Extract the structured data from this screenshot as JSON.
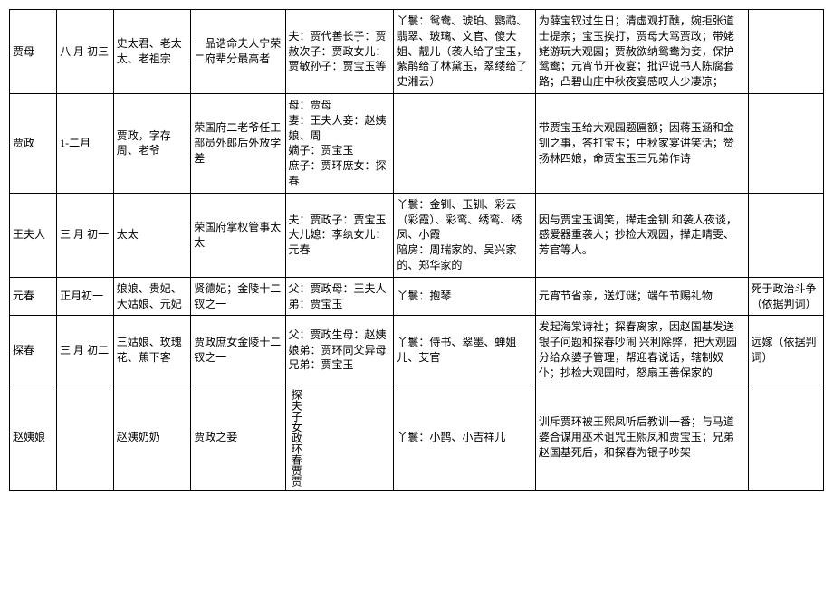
{
  "rows": [
    {
      "name": "贾母",
      "c2": "八 月 初三",
      "c3": "史太君、老太太、老祖宗",
      "c4": "一品诰命夫人宁荣二府辈分最高者",
      "c5": "夫：贾代善长子：贾赦次子：贾政女儿：贾敏孙子：贾宝玉等",
      "c6": "丫鬟：鸳鸯、琥珀、鹦鹉、翡翠、玻璃、文官、傻大姐、靓儿（袭人给了宝玉，紫鹃给了林黛玉，翠缕给了史湘云）",
      "c7": "为薛宝钗过生日；清虚观打醮，婉拒张道士提亲；宝玉挨打，贾母大骂贾政；带姥姥游玩大观园；贾赦欲纳鸳鸯为妾，保护鸳鸯；元宵节开夜宴；批评说书人陈腐套路；凸碧山庄中秋夜宴感叹人少凄凉；",
      "c8": ""
    },
    {
      "name": "贾政",
      "c2": "1-二月",
      "c3": "贾政，字存周、老爷",
      "c4": "荣国府二老爷任工部员外郎后外放学差",
      "c5": "母：贾母\n妻：王夫人妾：赵姨娘、周\n嫡子：贾宝玉\n庶子：贾环庶女：探春",
      "c6": "",
      "c7": "带贾宝玉给大观园题匾额；因蒋玉涵和金钏之事，答打宝玉；中秋家宴讲笑话；赞扬林四娘，命贾宝玉三兄弟作诗",
      "c8": ""
    },
    {
      "name": "王夫人",
      "c2": "三 月 初一",
      "c3": "太太",
      "c4": "荣国府掌权管事太太",
      "c5": "夫：贾政子：贾宝玉大儿媳：李纨女儿：元春",
      "c6": "丫鬟：金钏、玉钏、彩云（彩霞）、彩鸾、绣鸾、绣凤、小霞\n陪房：周瑞家的、吴兴家的、郑华家的",
      "c7": "因与贾宝玉调笑，撵走金钏 和袭人夜谈，感爱器重袭人；抄检大观园，撵走晴雯、芳官等人。",
      "c8": ""
    },
    {
      "name": "元春",
      "c2": "正月初一",
      "c3": "娘娘、贵妃、大姑娘、元妃",
      "c4": "贤德妃；金陵十二钗之一",
      "c5": "父：贾政母：王夫人弟：贾宝玉",
      "c6": "丫鬟：抱琴",
      "c7": "元宵节省亲，送灯谜；端午节赐礼物",
      "c8": "死于政治斗争（依据判词）"
    },
    {
      "name": "探春",
      "c2": "三 月 初二",
      "c3": "三姑娘、玫瑰花、蕉下客",
      "c4": "贾政庶女金陵十二钗之一",
      "c5": "父：贾政生母：赵姨娘弟：贾环同父异母兄弟：贾宝玉",
      "c6": "丫鬟：侍书、翠墨、蝉姐儿、艾官",
      "c7": "发起海棠诗社；探春离家，因赵国基发送银子问题和探春吵闹  兴利除弊，把大观园分给众婆子管理，帮迎春说话，辖制奴仆；抄检大观园时，怒扇王善保家的",
      "c8": "远嫁（依据判词）"
    },
    {
      "name": "赵姨娘",
      "c2": "",
      "c3": "赵姨奶奶",
      "c4": "贾政之妾",
      "c5_vert": "探夫子女政环春贾贾",
      "c6": "丫鬟：小鹊、小吉祥儿",
      "c7": "训斥贾环被王熙凤听后教训一番；与马道婆合谋用巫术诅咒王熙凤和贾宝玉；兄弟赵国基死后，和探春为银子吵架",
      "c8": ""
    }
  ]
}
